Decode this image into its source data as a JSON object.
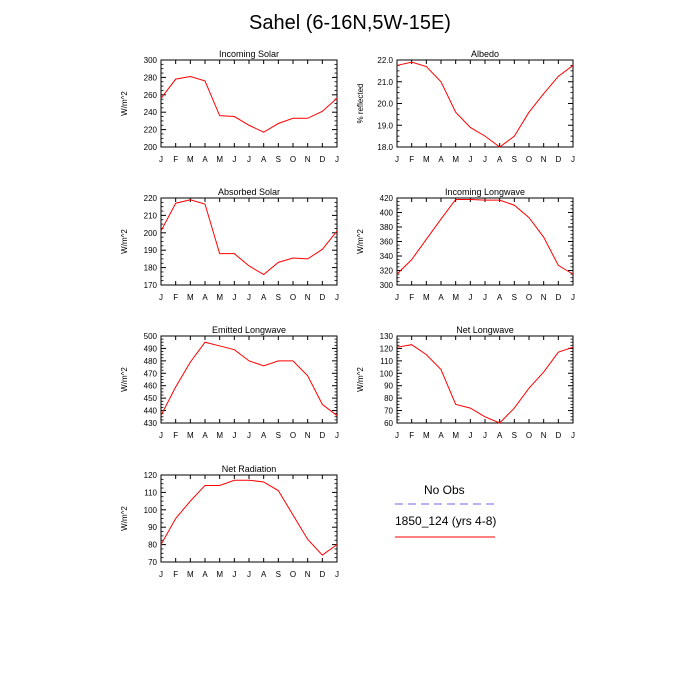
{
  "title": "Sahel (6-16N,5W-15E)",
  "legend": {
    "entries": [
      {
        "label": "No Obs",
        "color": "#6a6ae8",
        "dashed": true
      },
      {
        "label": "1850_124 (yrs 4-8)",
        "color": "#ff0000",
        "dashed": false
      }
    ]
  },
  "months": [
    "J",
    "F",
    "M",
    "A",
    "M",
    "J",
    "J",
    "A",
    "S",
    "O",
    "N",
    "D",
    "J"
  ],
  "chart_data": [
    {
      "type": "line",
      "title": "Incoming Solar",
      "ylabel": "W/m^2",
      "ylim": [
        200,
        300
      ],
      "yticks": [
        200,
        220,
        240,
        260,
        280,
        300
      ],
      "ytick_labels": [
        "200",
        "220",
        "240",
        "260",
        "280",
        "300"
      ],
      "series": [
        {
          "color": "#ff0000",
          "values": [
            256,
            278,
            281,
            276,
            236,
            235,
            225,
            217,
            227,
            233,
            233,
            241,
            256
          ]
        }
      ]
    },
    {
      "type": "line",
      "title": "Albedo",
      "ylabel": "% reflected",
      "ylim": [
        18,
        22
      ],
      "yticks": [
        18,
        19,
        20,
        21,
        22
      ],
      "ytick_labels": [
        "18.0",
        "19.0",
        "20.0",
        "21.0",
        "22.0"
      ],
      "series": [
        {
          "color": "#ff0000",
          "values": [
            21.75,
            21.9,
            21.7,
            21.0,
            19.6,
            18.9,
            18.5,
            18.0,
            18.5,
            19.6,
            20.45,
            21.25,
            21.75
          ]
        }
      ]
    },
    {
      "type": "line",
      "title": "Absorbed Solar",
      "ylabel": "W/m^2",
      "ylim": [
        170,
        220
      ],
      "yticks": [
        170,
        180,
        190,
        200,
        210,
        220
      ],
      "ytick_labels": [
        "170",
        "180",
        "190",
        "200",
        "210",
        "220"
      ],
      "series": [
        {
          "color": "#ff0000",
          "values": [
            201,
            217,
            219,
            216.5,
            188,
            188,
            181,
            176,
            183,
            185.5,
            185,
            190.5,
            201
          ]
        }
      ]
    },
    {
      "type": "line",
      "title": "Incoming Longwave",
      "ylabel": "W/m^2",
      "ylim": [
        300,
        420
      ],
      "yticks": [
        300,
        320,
        340,
        360,
        380,
        400,
        420
      ],
      "ytick_labels": [
        "300",
        "320",
        "340",
        "360",
        "380",
        "400",
        "420"
      ],
      "series": [
        {
          "color": "#ff0000",
          "values": [
            315,
            335,
            363,
            391,
            418,
            418,
            417,
            417,
            410,
            393,
            366,
            327,
            315
          ]
        }
      ]
    },
    {
      "type": "line",
      "title": "Emitted Longwave",
      "ylabel": "W/m^2",
      "ylim": [
        430,
        500
      ],
      "yticks": [
        430,
        440,
        450,
        460,
        470,
        480,
        490,
        500
      ],
      "ytick_labels": [
        "430",
        "440",
        "450",
        "460",
        "470",
        "480",
        "490",
        "500"
      ],
      "series": [
        {
          "color": "#ff0000",
          "values": [
            436,
            459,
            479,
            495,
            492,
            489,
            480,
            476,
            480,
            480,
            468,
            445,
            436
          ]
        }
      ]
    },
    {
      "type": "line",
      "title": "Net Longwave",
      "ylabel": "W/m^2",
      "ylim": [
        60,
        130
      ],
      "yticks": [
        60,
        70,
        80,
        90,
        100,
        110,
        120,
        130
      ],
      "ytick_labels": [
        "60",
        "70",
        "80",
        "90",
        "100",
        "110",
        "120",
        "130"
      ],
      "series": [
        {
          "color": "#ff0000",
          "values": [
            121,
            123,
            115,
            103,
            75,
            72,
            65,
            60,
            72,
            88,
            101,
            117,
            121
          ]
        }
      ]
    },
    {
      "type": "line",
      "title": "Net Radiation",
      "ylabel": "W/m^2",
      "ylim": [
        70,
        120
      ],
      "yticks": [
        70,
        80,
        90,
        100,
        110,
        120
      ],
      "ytick_labels": [
        "70",
        "80",
        "90",
        "100",
        "110",
        "120"
      ],
      "series": [
        {
          "color": "#ff0000",
          "values": [
            80,
            95,
            105,
            114,
            114,
            117,
            117,
            116,
            111,
            97,
            83,
            74,
            80
          ]
        }
      ]
    }
  ]
}
